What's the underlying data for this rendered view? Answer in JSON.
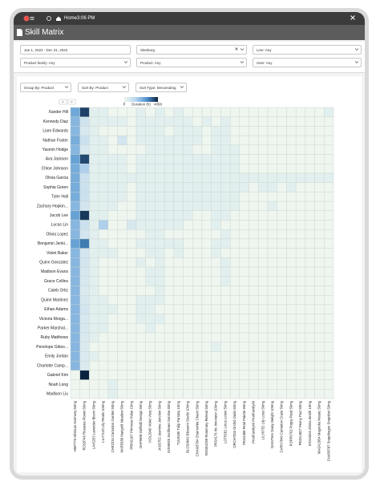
{
  "header": {
    "home": "Home",
    "time": "3:06 PM",
    "title": "Skill Matrix"
  },
  "filters": [
    "Jan 1, 2022 - Dec 31, 2022",
    "Sleeburg",
    "Line: Any",
    "Product family: Any",
    "Product: Any",
    "User: Any"
  ],
  "controls": [
    "Group By: Product",
    "Sort By: Product",
    "Sort Type: Descending"
  ],
  "pager": [
    "<",
    ">"
  ],
  "chart_data": {
    "type": "heatmap",
    "colorbar_label": "Duration (h)",
    "zlim": [
      0,
      4068
    ],
    "zticks": [
      0,
      4068
    ],
    "colors": [
      "#eef6ef",
      "#b9d6ef",
      "#4f93cf",
      "#0a2240"
    ],
    "x": [
      "HIB7770 Hibiscus Harmony 50mg",
      "ROS8746 Rosacea Flower 50mg",
      "LAV5253 Lavender Bloom 50mg",
      "LILY7120 Lily Petals 100mg",
      "CAR2234 Carnation Garden 50mg",
      "MAR5589 Marigold Meadow 50mg",
      "PRIM1187 Primrose Pulse 10mg",
      "DAF9696 Daffodil Design 50mg",
      "VIOL2946 Violet Vista 50mg",
      "JAS6752 Jasmine Junction 50mg",
      "SUN9925 Sunflower Sunrise 50mg",
      "TUL9185 Tulip Fantasy 10mg",
      "BLOS9942 Blossom Studio 100mg",
      "CHAM3784 Chamomile Charm 50mg",
      "ROSE4259 Rosemary Retreat 50mg",
      "IRIS4176 Iris Innovator 100mg",
      "LOT5581 Lotus Lotion 50mg",
      "ORCH7003 Orchid Oasis 50mg",
      "PEO4388 Petal Palette 50mg",
      "ProdFamily49 ProdFamily49",
      "LILY8752 Lily Lotus 50mg",
      "DAIS7561 Daisy Delight 100mg",
      "CARN7849 Carnation Craze 50mg",
      "POPP6763 Poppy Petal 50mg",
      "PEON4827 Peony Pact 50mg",
      "ZINN4504 Zinnia Zenith 10mg",
      "MAGN2954 Magnolia Mosaic 50mg",
      "SNAP8787 Snapdragon Snapshot 50mg"
    ],
    "y": [
      "Xander Hill",
      "Kennedy Diaz",
      "Liam Edwards",
      "Nathan Foster",
      "Yasmin Hodge",
      "Ava Jackson",
      "Chloe Johnson",
      "Olivia Garcia",
      "Sophia Green",
      "Tyler Hall",
      "Zachary Hopkin...",
      "Jacob Lee",
      "Lucas Lin",
      "Olivia Lopez",
      "Benjamin Jenki...",
      "Violet Baker",
      "Quinn Gonzalez",
      "Madison Evans",
      "Grace Collins",
      "Caleb Ortiz",
      "Quinn Martinez",
      "Ethan Adams",
      "Victoria Morga...",
      "Parker Marshal...",
      "Ruby Matthews",
      "Penelope Gibso...",
      "Emily Jordan",
      "Charlotte Camp...",
      "Gabriel Kim",
      "Noah Long",
      "Madison Liu"
    ],
    "values": [
      [
        2300,
        3700,
        300,
        300,
        0,
        0,
        0,
        300,
        0,
        300,
        0,
        300,
        0,
        0,
        0,
        0,
        0,
        0,
        0,
        0,
        0,
        0,
        0,
        0,
        0,
        0,
        0,
        300
      ],
      [
        2000,
        800,
        300,
        300,
        300,
        300,
        0,
        300,
        300,
        300,
        300,
        300,
        300,
        0,
        300,
        0,
        300,
        0,
        0,
        0,
        0,
        0,
        0,
        0,
        0,
        0,
        0,
        0
      ],
      [
        2000,
        600,
        300,
        0,
        0,
        0,
        0,
        300,
        300,
        300,
        0,
        300,
        300,
        300,
        0,
        300,
        300,
        0,
        0,
        0,
        0,
        0,
        0,
        0,
        0,
        0,
        0,
        0
      ],
      [
        2200,
        900,
        300,
        300,
        0,
        700,
        0,
        300,
        300,
        300,
        300,
        300,
        300,
        300,
        0,
        300,
        300,
        0,
        0,
        0,
        0,
        0,
        0,
        0,
        0,
        0,
        0,
        0
      ],
      [
        2000,
        600,
        300,
        300,
        0,
        0,
        0,
        0,
        300,
        300,
        300,
        300,
        300,
        0,
        0,
        300,
        300,
        300,
        0,
        0,
        0,
        0,
        0,
        0,
        0,
        0,
        0,
        0
      ],
      [
        2400,
        3600,
        300,
        300,
        300,
        300,
        0,
        300,
        300,
        300,
        300,
        300,
        300,
        300,
        300,
        300,
        300,
        300,
        0,
        0,
        0,
        0,
        0,
        0,
        0,
        0,
        0,
        0
      ],
      [
        2200,
        1500,
        300,
        300,
        300,
        300,
        0,
        300,
        300,
        300,
        300,
        300,
        300,
        300,
        300,
        300,
        300,
        300,
        0,
        0,
        0,
        0,
        0,
        0,
        0,
        0,
        0,
        0
      ],
      [
        2200,
        900,
        300,
        300,
        300,
        300,
        300,
        300,
        300,
        300,
        300,
        300,
        300,
        300,
        300,
        300,
        300,
        300,
        300,
        300,
        300,
        300,
        300,
        300,
        300,
        300,
        300,
        300
      ],
      [
        2200,
        900,
        300,
        300,
        300,
        300,
        0,
        300,
        300,
        300,
        300,
        300,
        300,
        300,
        300,
        300,
        300,
        300,
        300,
        0,
        300,
        300,
        0,
        300,
        0,
        0,
        0,
        0
      ],
      [
        2200,
        900,
        300,
        300,
        300,
        300,
        0,
        300,
        300,
        300,
        300,
        300,
        300,
        300,
        300,
        300,
        300,
        300,
        0,
        0,
        0,
        0,
        0,
        0,
        0,
        0,
        0,
        0
      ],
      [
        2000,
        700,
        300,
        300,
        300,
        0,
        0,
        300,
        300,
        300,
        300,
        300,
        300,
        300,
        300,
        300,
        300,
        300,
        0,
        0,
        0,
        300,
        0,
        0,
        0,
        0,
        0,
        0
      ],
      [
        2400,
        3800,
        300,
        300,
        0,
        0,
        0,
        300,
        300,
        300,
        300,
        300,
        300,
        0,
        0,
        300,
        300,
        0,
        0,
        0,
        0,
        0,
        0,
        0,
        0,
        0,
        0,
        0
      ],
      [
        2000,
        900,
        300,
        1500,
        0,
        0,
        600,
        300,
        300,
        300,
        300,
        300,
        0,
        0,
        0,
        300,
        0,
        0,
        0,
        0,
        0,
        0,
        0,
        0,
        0,
        0,
        0,
        0
      ],
      [
        2000,
        700,
        300,
        0,
        0,
        0,
        0,
        0,
        300,
        300,
        0,
        0,
        0,
        0,
        0,
        0,
        300,
        0,
        0,
        0,
        0,
        0,
        0,
        0,
        0,
        0,
        0,
        0
      ],
      [
        2400,
        3000,
        300,
        300,
        0,
        0,
        0,
        300,
        300,
        300,
        300,
        300,
        0,
        0,
        0,
        300,
        300,
        0,
        0,
        0,
        0,
        0,
        0,
        0,
        0,
        0,
        0,
        0
      ],
      [
        2000,
        700,
        300,
        300,
        300,
        0,
        0,
        0,
        300,
        300,
        0,
        300,
        0,
        0,
        0,
        300,
        0,
        0,
        0,
        0,
        0,
        0,
        0,
        0,
        0,
        0,
        0,
        0
      ],
      [
        2000,
        700,
        300,
        0,
        0,
        0,
        0,
        300,
        0,
        300,
        0,
        0,
        0,
        0,
        0,
        0,
        300,
        0,
        0,
        0,
        0,
        0,
        0,
        0,
        0,
        0,
        0,
        0
      ],
      [
        2000,
        600,
        300,
        0,
        0,
        0,
        0,
        0,
        300,
        300,
        0,
        0,
        0,
        0,
        0,
        0,
        300,
        0,
        0,
        0,
        0,
        0,
        0,
        0,
        0,
        0,
        0,
        0
      ],
      [
        2000,
        600,
        300,
        0,
        0,
        0,
        0,
        0,
        300,
        300,
        0,
        0,
        0,
        0,
        0,
        0,
        300,
        0,
        0,
        0,
        0,
        0,
        0,
        0,
        0,
        0,
        0,
        0
      ],
      [
        2000,
        500,
        300,
        0,
        0,
        0,
        0,
        0,
        0,
        300,
        0,
        0,
        0,
        0,
        0,
        0,
        0,
        0,
        0,
        0,
        0,
        0,
        0,
        0,
        0,
        0,
        0,
        0
      ],
      [
        2000,
        600,
        300,
        300,
        0,
        0,
        0,
        300,
        300,
        300,
        0,
        0,
        0,
        0,
        0,
        0,
        0,
        0,
        0,
        0,
        0,
        0,
        0,
        0,
        0,
        0,
        0,
        0
      ],
      [
        2000,
        700,
        300,
        300,
        300,
        0,
        0,
        300,
        300,
        0,
        0,
        0,
        0,
        0,
        0,
        0,
        0,
        0,
        0,
        0,
        0,
        0,
        0,
        0,
        0,
        0,
        0,
        0
      ],
      [
        2000,
        600,
        300,
        300,
        0,
        0,
        0,
        300,
        300,
        300,
        0,
        0,
        0,
        0,
        0,
        0,
        0,
        0,
        0,
        0,
        0,
        0,
        0,
        0,
        0,
        0,
        0,
        0
      ],
      [
        2000,
        600,
        300,
        300,
        0,
        0,
        0,
        0,
        300,
        0,
        0,
        0,
        0,
        0,
        0,
        0,
        0,
        0,
        0,
        0,
        0,
        0,
        0,
        0,
        0,
        0,
        0,
        0
      ],
      [
        2000,
        500,
        300,
        0,
        0,
        0,
        0,
        0,
        0,
        0,
        0,
        0,
        0,
        0,
        0,
        0,
        0,
        0,
        0,
        0,
        0,
        0,
        0,
        0,
        0,
        0,
        0,
        0
      ],
      [
        2000,
        500,
        0,
        0,
        0,
        0,
        0,
        0,
        0,
        0,
        0,
        0,
        0,
        0,
        0,
        300,
        0,
        0,
        0,
        0,
        0,
        0,
        0,
        0,
        0,
        0,
        0,
        0
      ],
      [
        2000,
        500,
        300,
        0,
        0,
        0,
        0,
        0,
        0,
        0,
        0,
        0,
        0,
        0,
        0,
        0,
        0,
        0,
        0,
        0,
        0,
        0,
        0,
        0,
        0,
        0,
        0,
        0
      ],
      [
        2000,
        500,
        0,
        0,
        0,
        0,
        0,
        0,
        0,
        0,
        0,
        0,
        0,
        0,
        0,
        0,
        0,
        0,
        0,
        0,
        0,
        0,
        0,
        0,
        0,
        0,
        0,
        0
      ],
      [
        0,
        4068,
        0,
        0,
        0,
        0,
        0,
        0,
        0,
        0,
        0,
        0,
        0,
        0,
        0,
        0,
        0,
        0,
        0,
        0,
        0,
        0,
        0,
        0,
        0,
        0,
        0,
        0
      ],
      [
        0,
        0,
        0,
        0,
        300,
        0,
        0,
        0,
        0,
        0,
        0,
        0,
        0,
        0,
        0,
        0,
        0,
        0,
        0,
        0,
        0,
        0,
        0,
        0,
        0,
        0,
        0,
        0
      ],
      [
        0,
        0,
        0,
        0,
        300,
        0,
        0,
        0,
        0,
        0,
        0,
        0,
        0,
        0,
        0,
        0,
        0,
        0,
        0,
        0,
        0,
        0,
        0,
        0,
        0,
        0,
        0,
        0
      ]
    ]
  }
}
